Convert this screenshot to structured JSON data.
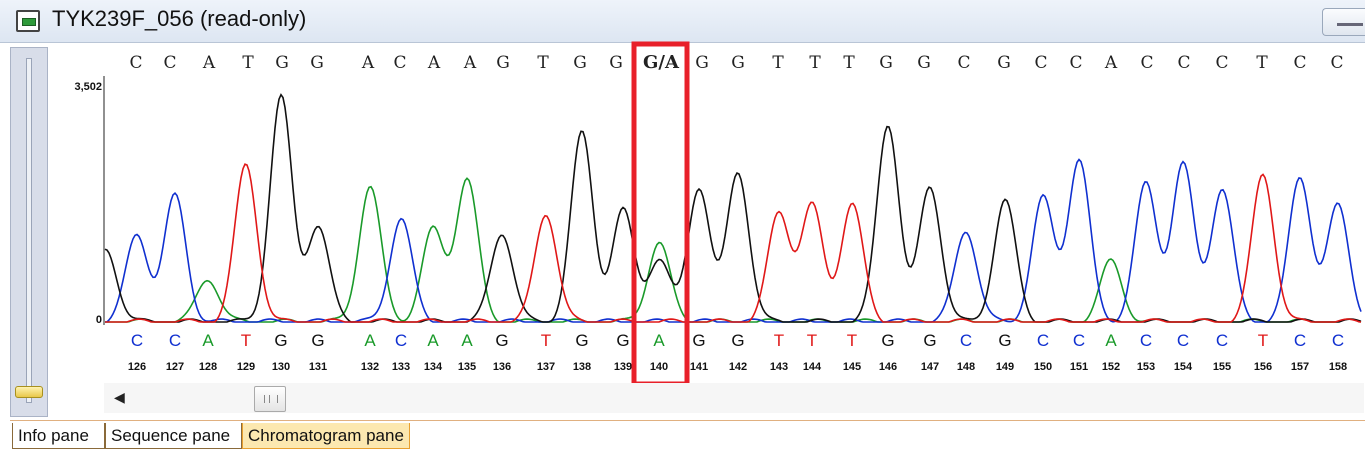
{
  "window": {
    "title": "TYK239F_056 (read-only)"
  },
  "chromatogram": {
    "y_axis": {
      "max_label": "3,502",
      "min_label": "0",
      "max": 3502
    },
    "reference_sequence": [
      "C",
      "C",
      "A",
      "T",
      "G",
      "G",
      "A",
      "C",
      "A",
      "A",
      "G",
      "T",
      "G",
      "G",
      "G/A",
      "G",
      "G",
      "T",
      "T",
      "T",
      "G",
      "G",
      "C",
      "G",
      "C",
      "C",
      "A",
      "C",
      "C",
      "C",
      "T",
      "C",
      "C"
    ],
    "calls": [
      {
        "base": "C",
        "pos": "126"
      },
      {
        "base": "C",
        "pos": "127"
      },
      {
        "base": "A",
        "pos": "128"
      },
      {
        "base": "T",
        "pos": "129"
      },
      {
        "base": "G",
        "pos": "130"
      },
      {
        "base": "G",
        "pos": "131"
      },
      {
        "base": "A",
        "pos": "132"
      },
      {
        "base": "C",
        "pos": "133"
      },
      {
        "base": "A",
        "pos": "134"
      },
      {
        "base": "A",
        "pos": "135"
      },
      {
        "base": "G",
        "pos": "136"
      },
      {
        "base": "T",
        "pos": "137"
      },
      {
        "base": "G",
        "pos": "138"
      },
      {
        "base": "G",
        "pos": "139"
      },
      {
        "base": "A",
        "pos": "140"
      },
      {
        "base": "G",
        "pos": "141"
      },
      {
        "base": "G",
        "pos": "142"
      },
      {
        "base": "T",
        "pos": "143"
      },
      {
        "base": "T",
        "pos": "144"
      },
      {
        "base": "T",
        "pos": "145"
      },
      {
        "base": "G",
        "pos": "146"
      },
      {
        "base": "G",
        "pos": "147"
      },
      {
        "base": "C",
        "pos": "148"
      },
      {
        "base": "G",
        "pos": "149"
      },
      {
        "base": "C",
        "pos": "150"
      },
      {
        "base": "C",
        "pos": "151"
      },
      {
        "base": "A",
        "pos": "152"
      },
      {
        "base": "C",
        "pos": "153"
      },
      {
        "base": "C",
        "pos": "154"
      },
      {
        "base": "C",
        "pos": "155"
      },
      {
        "base": "T",
        "pos": "156"
      },
      {
        "base": "C",
        "pos": "157"
      },
      {
        "base": "C",
        "pos": "158"
      }
    ],
    "highlighted_position": "140",
    "base_colors": {
      "A": "#1a9a2a",
      "C": "#1030d0",
      "G": "#111111",
      "T": "#e01818"
    },
    "highlight_color": "#e8202a"
  },
  "tabs": [
    {
      "label": "Info pane",
      "active": false
    },
    {
      "label": "Sequence pane",
      "active": false
    },
    {
      "label": "Chromatogram pane",
      "active": true
    }
  ]
}
